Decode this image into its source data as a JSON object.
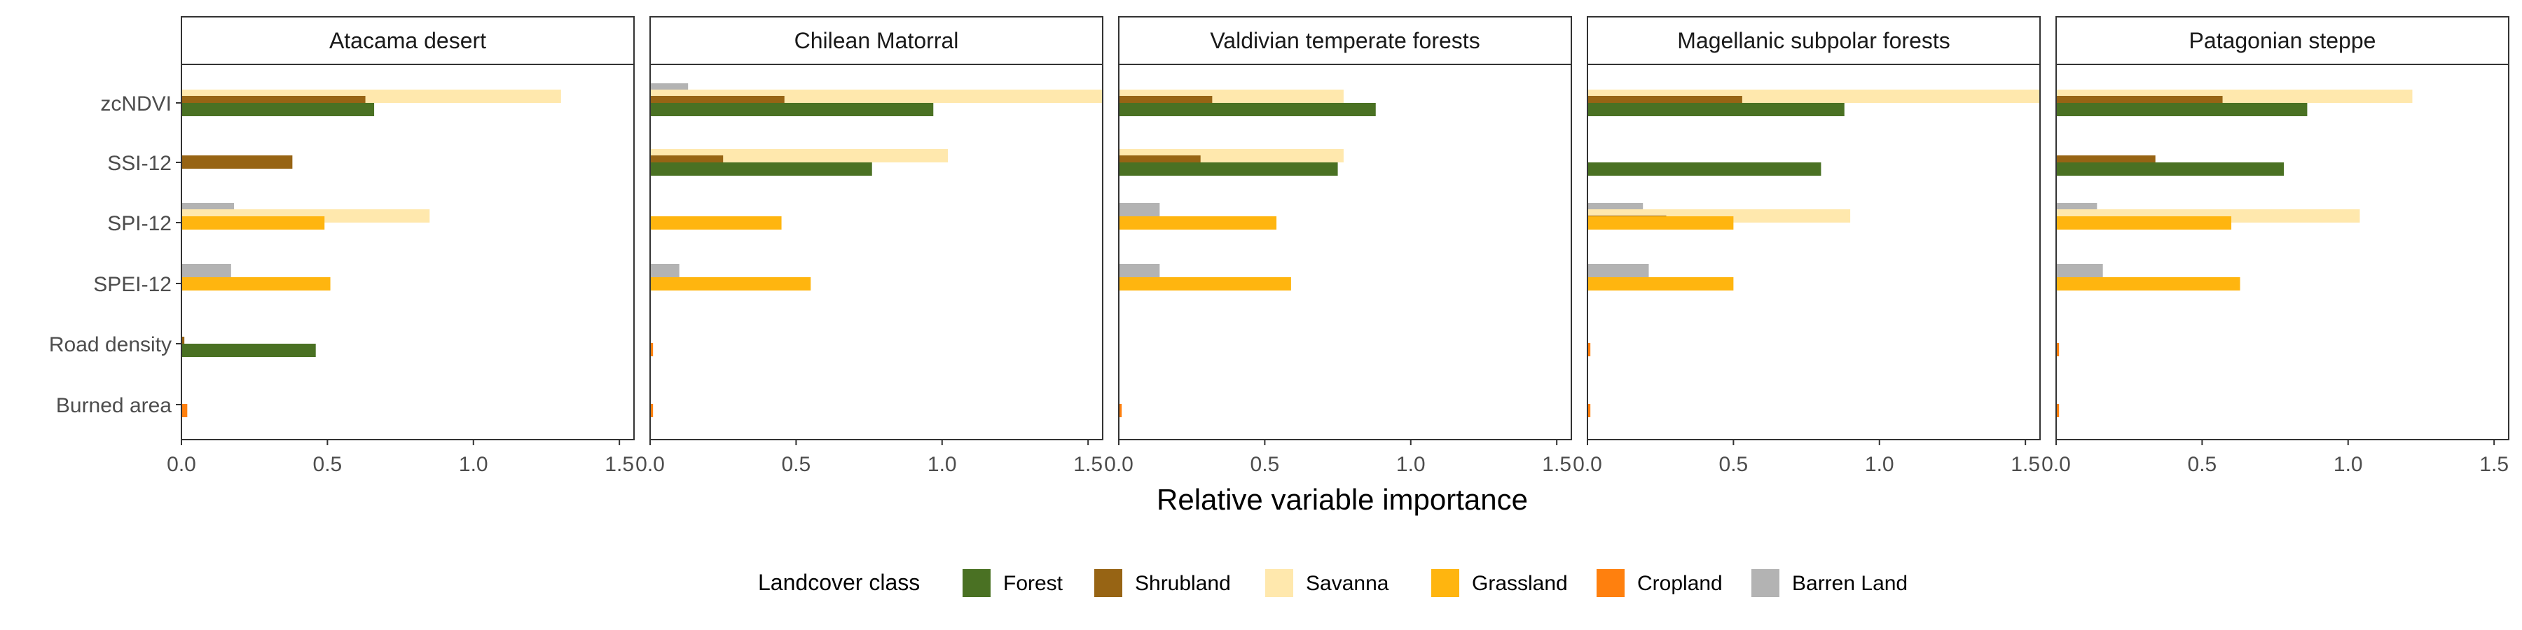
{
  "chart_data": {
    "type": "bar",
    "orientation": "horizontal",
    "xlabel": "Relative variable importance",
    "xlim": [
      0,
      1.55
    ],
    "x_ticks": [
      0.0,
      0.5,
      1.0,
      1.5
    ],
    "x_tick_labels": [
      "0.0",
      "0.5",
      "1.0",
      "1.5"
    ],
    "categories": [
      "zcNDVI",
      "SSI-12",
      "SPI-12",
      "SPEI-12",
      "Road density",
      "Burned area"
    ],
    "legend": {
      "title": "Landcover class",
      "position": "bottom",
      "items": [
        {
          "name": "Forest",
          "color": "#4a7123"
        },
        {
          "name": "Shrubland",
          "color": "#976414"
        },
        {
          "name": "Savanna",
          "color": "#ffe8ad"
        },
        {
          "name": "Grassland",
          "color": "#ffb50f"
        },
        {
          "name": "Cropland",
          "color": "#ff800e"
        },
        {
          "name": "Barren Land",
          "color": "#b3b3b3"
        }
      ]
    },
    "grid": false,
    "panels": [
      {
        "title": "Atacama desert",
        "values": {
          "zcNDVI": {
            "Savanna": 1.3,
            "Shrubland": 0.63,
            "Forest": 0.66
          },
          "SSI-12": {
            "Shrubland": 0.38
          },
          "SPI-12": {
            "Barren Land": 0.18,
            "Grassland": 0.49,
            "Savanna": 0.85
          },
          "SPEI-12": {
            "Barren Land": 0.17,
            "Grassland": 0.51
          },
          "Road density": {
            "Shrubland": 0.01,
            "Forest": 0.46
          },
          "Burned area": {
            "Cropland": 0.02
          }
        }
      },
      {
        "title": "Chilean Matorral",
        "values": {
          "zcNDVI": {
            "Barren Land": 0.13,
            "Savanna": 1.55,
            "Shrubland": 0.46,
            "Forest": 0.97
          },
          "SSI-12": {
            "Savanna": 1.02,
            "Shrubland": 0.25,
            "Forest": 0.76
          },
          "SPI-12": {
            "Grassland": 0.45
          },
          "SPEI-12": {
            "Barren Land": 0.1,
            "Grassland": 0.55
          },
          "Road density": {
            "Cropland": 0.01
          },
          "Burned area": {
            "Cropland": 0.01
          }
        }
      },
      {
        "title": "Valdivian temperate forests",
        "values": {
          "zcNDVI": {
            "Savanna": 0.77,
            "Shrubland": 0.32,
            "Forest": 0.88
          },
          "SSI-12": {
            "Savanna": 0.77,
            "Shrubland": 0.28,
            "Forest": 0.75
          },
          "SPI-12": {
            "Barren Land": 0.14,
            "Grassland": 0.54
          },
          "SPEI-12": {
            "Barren Land": 0.14,
            "Grassland": 0.59
          },
          "Road density": {},
          "Burned area": {
            "Cropland": 0.01
          }
        }
      },
      {
        "title": "Magellanic subpolar forests",
        "values": {
          "zcNDVI": {
            "Savanna": 1.55,
            "Shrubland": 0.53,
            "Forest": 0.88
          },
          "SSI-12": {
            "Forest": 0.8
          },
          "SPI-12": {
            "Barren Land": 0.19,
            "Grassland": 0.5,
            "Savanna": 0.9,
            "Shrubland": 0.27
          },
          "SPEI-12": {
            "Barren Land": 0.21,
            "Grassland": 0.5
          },
          "Road density": {
            "Cropland": 0.01
          },
          "Burned area": {
            "Cropland": 0.01
          }
        }
      },
      {
        "title": "Patagonian steppe",
        "values": {
          "zcNDVI": {
            "Savanna": 1.22,
            "Shrubland": 0.57,
            "Forest": 0.86
          },
          "SSI-12": {
            "Shrubland": 0.34,
            "Forest": 0.78
          },
          "SPI-12": {
            "Barren Land": 0.14,
            "Grassland": 0.6,
            "Savanna": 1.04
          },
          "SPEI-12": {
            "Barren Land": 0.16,
            "Grassland": 0.63
          },
          "Road density": {
            "Cropland": 0.01
          },
          "Burned area": {
            "Cropland": 0.01
          }
        }
      }
    ]
  }
}
